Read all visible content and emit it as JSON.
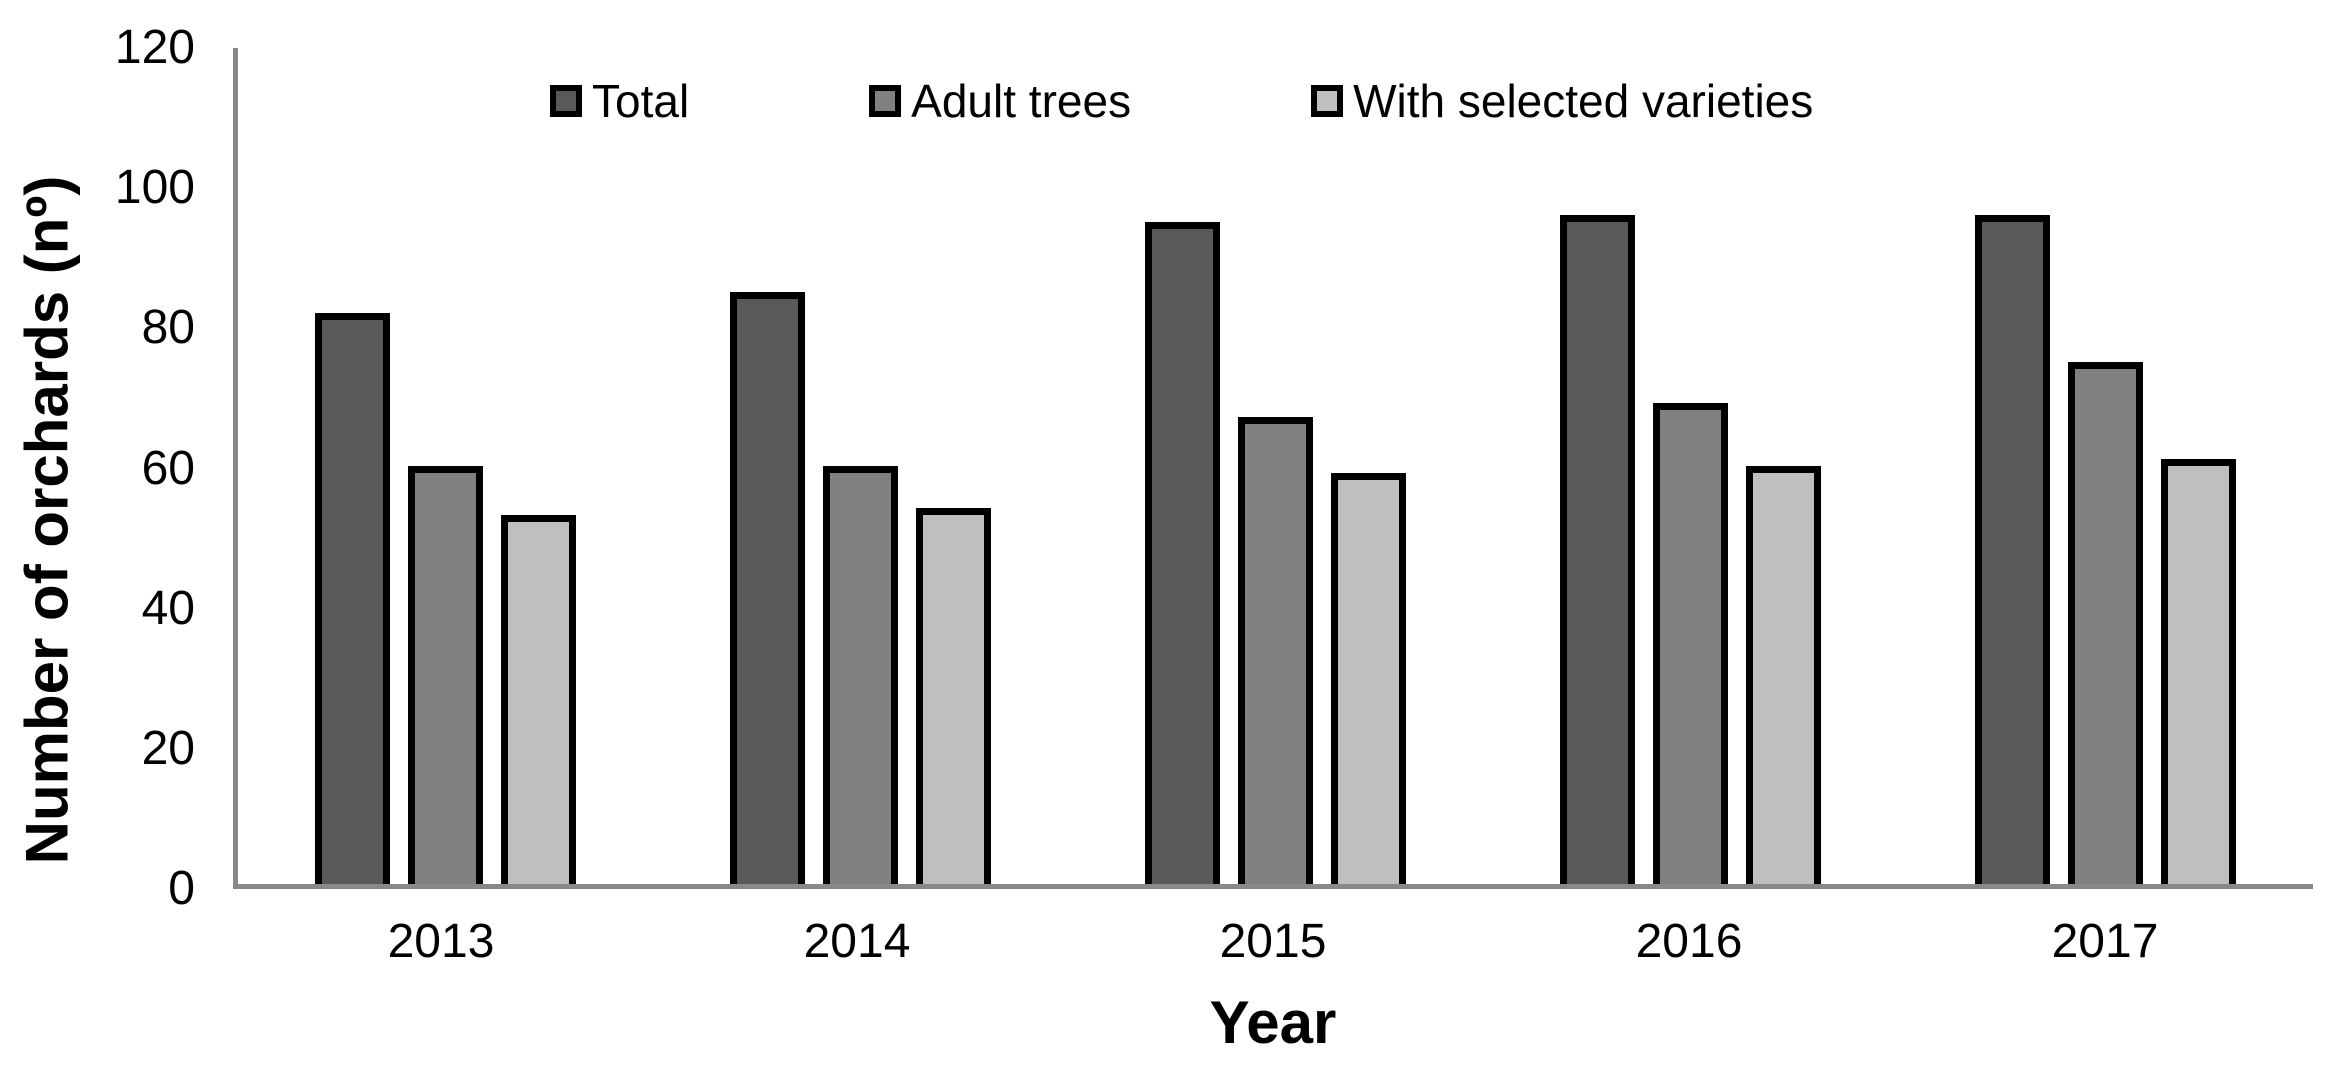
{
  "figure": {
    "background": "#ffffff",
    "text_color": "#000000"
  },
  "chart_data": {
    "type": "bar",
    "title": "",
    "xlabel": "Year",
    "ylabel": "Number of orchards (nº)",
    "categories": [
      "2013",
      "2014",
      "2015",
      "2016",
      "2017"
    ],
    "series": [
      {
        "name": "Total",
        "color": "#595959",
        "values": [
          82,
          85,
          95,
          96,
          96
        ]
      },
      {
        "name": "Adult trees",
        "color": "#808080",
        "values": [
          60,
          60,
          67,
          69,
          75
        ]
      },
      {
        "name": "With selected varieties",
        "color": "#bfbfbf",
        "values": [
          53,
          54,
          59,
          60,
          61
        ]
      }
    ],
    "ylim": [
      0,
      120
    ],
    "yticks": [
      0,
      20,
      40,
      60,
      80,
      100,
      120
    ],
    "grid": false,
    "legend_position": "top-center-inside",
    "bar_border_color": "#000000",
    "axis_color": "#898989"
  }
}
